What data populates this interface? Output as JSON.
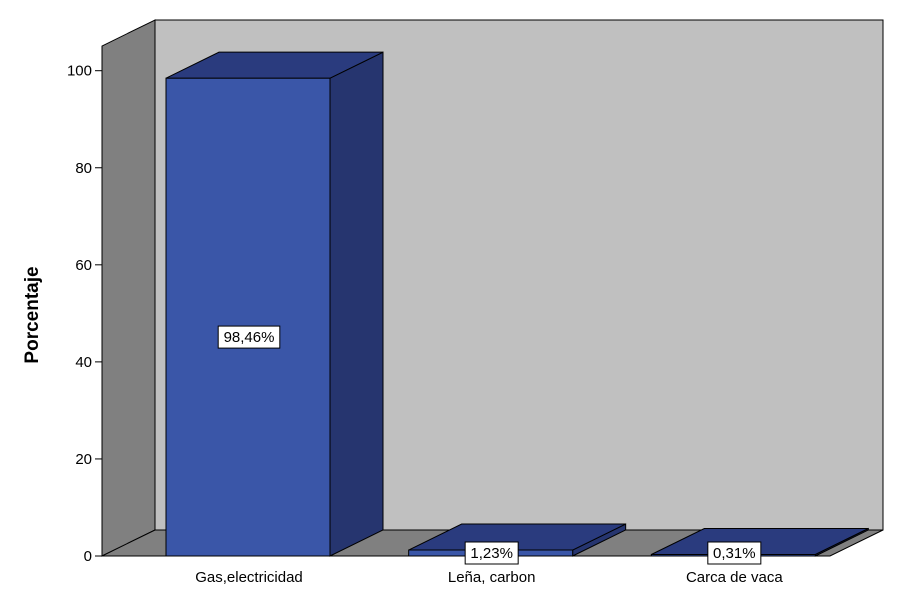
{
  "chart_data": {
    "type": "bar",
    "title": "",
    "xlabel": "",
    "ylabel": "Porcentaje",
    "categories": [
      "Gas,electricidad",
      "Leña, carbon",
      "Carca de vaca"
    ],
    "values": [
      98.46,
      1.23,
      0.31
    ],
    "data_labels": [
      "98,46%",
      "1,23%",
      "0,31%"
    ],
    "yticks": [
      "0",
      "20",
      "40",
      "60",
      "80",
      "100"
    ],
    "ylim": [
      0,
      105
    ],
    "three_d": true,
    "grid": false,
    "legend": "none"
  },
  "colors": {
    "bar_front": "#3A56A8",
    "bar_side": "#26356F",
    "bar_top": "#2A3B7E",
    "back_wall": "#C0C0C0",
    "side_wall": "#808080",
    "floor": "#808080",
    "outline": "#000000"
  }
}
